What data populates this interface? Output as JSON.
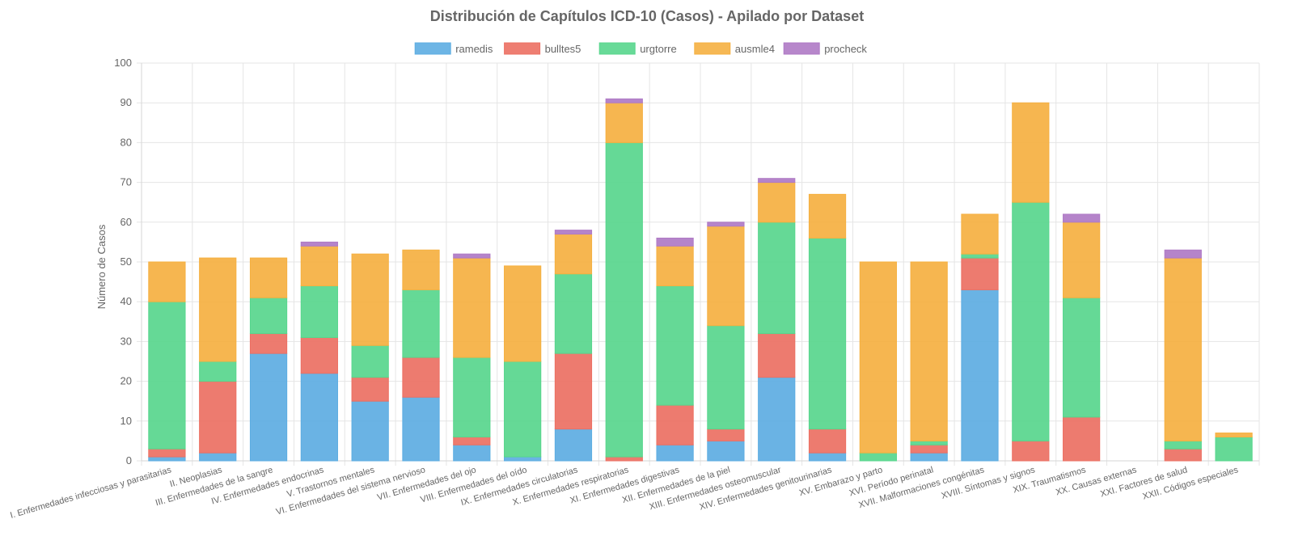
{
  "chart_data": {
    "type": "bar",
    "stacked": true,
    "title": "Distribución de Capítulos ICD-10 (Casos) - Apilado por Dataset",
    "ylabel": "Número de Casos",
    "xlabel": "",
    "ylim": [
      0,
      100
    ],
    "yticks": [
      0,
      10,
      20,
      30,
      40,
      50,
      60,
      70,
      80,
      90,
      100
    ],
    "grid": true,
    "legend_position": "top-center",
    "categories": [
      "I. Enfermedades infecciosas y parasitarias",
      "II. Neoplasias",
      "III. Enfermedades de la sangre",
      "IV. Enfermedades endocrinas",
      "V. Trastornos mentales",
      "VI. Enfermedades del sistema nervioso",
      "VII. Enfermedades del ojo",
      "VIII. Enfermedades del oído",
      "IX. Enfermedades circulatorias",
      "X. Enfermedades respiratorias",
      "XI. Enfermedades digestivas",
      "XII. Enfermedades de la piel",
      "XIII. Enfermedades osteomuscular",
      "XIV. Enfermedades genitourinarias",
      "XV. Embarazo y parto",
      "XVI. Período perinatal",
      "XVII. Malformaciones congénitas",
      "XVIII. Síntomas y signos",
      "XIX. Traumatismos",
      "XX. Causas externas",
      "XXI. Factores de salud",
      "XXII. Códigos especiales"
    ],
    "series": [
      {
        "name": "ramedis",
        "color": "#5DADE2",
        "values": [
          1,
          2,
          27,
          22,
          15,
          16,
          4,
          1,
          8,
          0,
          4,
          5,
          21,
          2,
          0,
          2,
          43,
          0,
          0,
          0,
          0,
          0
        ]
      },
      {
        "name": "bulltes5",
        "color": "#EC7063",
        "values": [
          2,
          18,
          5,
          9,
          6,
          10,
          2,
          0,
          19,
          1,
          10,
          3,
          11,
          6,
          0,
          2,
          8,
          5,
          11,
          0,
          3,
          0
        ]
      },
      {
        "name": "urgtorre",
        "color": "#58D68D",
        "values": [
          37,
          5,
          9,
          13,
          8,
          17,
          20,
          24,
          20,
          79,
          30,
          26,
          28,
          48,
          2,
          1,
          1,
          60,
          30,
          0,
          2,
          6
        ]
      },
      {
        "name": "ausmle4",
        "color": "#F5B041",
        "values": [
          10,
          26,
          10,
          10,
          23,
          10,
          25,
          24,
          10,
          10,
          10,
          25,
          10,
          11,
          48,
          45,
          10,
          25,
          19,
          0,
          46,
          1
        ]
      },
      {
        "name": "procheck",
        "color": "#AF7AC5",
        "values": [
          0,
          0,
          0,
          1,
          0,
          0,
          1,
          0,
          1,
          1,
          2,
          1,
          1,
          0,
          0,
          0,
          0,
          0,
          2,
          0,
          2,
          0
        ]
      }
    ]
  }
}
